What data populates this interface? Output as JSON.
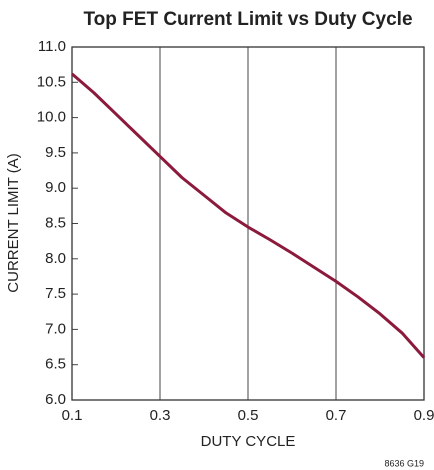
{
  "chart_data": {
    "type": "line",
    "title": "Top FET Current Limit vs Duty Cycle",
    "xlabel": "DUTY CYCLE",
    "ylabel": "CURRENT LIMIT (A)",
    "note": "8636 G19",
    "x": [
      0.1,
      0.15,
      0.2,
      0.25,
      0.3,
      0.35,
      0.4,
      0.45,
      0.5,
      0.55,
      0.6,
      0.65,
      0.7,
      0.75,
      0.8,
      0.85,
      0.9
    ],
    "series": [
      {
        "name": "Current Limit",
        "color": "#8b1a3c",
        "values": [
          10.62,
          10.35,
          10.05,
          9.75,
          9.45,
          9.15,
          8.9,
          8.65,
          8.45,
          8.27,
          8.08,
          7.88,
          7.68,
          7.46,
          7.22,
          6.95,
          6.6
        ]
      }
    ],
    "xlim": [
      0.1,
      0.9
    ],
    "xticks": [
      0.1,
      0.3,
      0.5,
      0.7,
      0.9
    ],
    "ylim": [
      6,
      11
    ],
    "yticks": [
      {
        "value": 6,
        "label": "6.0"
      },
      {
        "value": 6.5,
        "label": "6.5"
      },
      {
        "value": 7,
        "label": "7.0"
      },
      {
        "value": 7.5,
        "label": "7.5"
      },
      {
        "value": 8,
        "label": "8.0"
      },
      {
        "value": 8.5,
        "label": "8.5"
      },
      {
        "value": 9,
        "label": "9.0"
      },
      {
        "value": 9.5,
        "label": "9.5"
      },
      {
        "value": 10,
        "label": "10.0"
      },
      {
        "value": 10.5,
        "label": "10.5"
      },
      {
        "value": 11,
        "label": "11.0"
      }
    ],
    "grid": "x"
  }
}
